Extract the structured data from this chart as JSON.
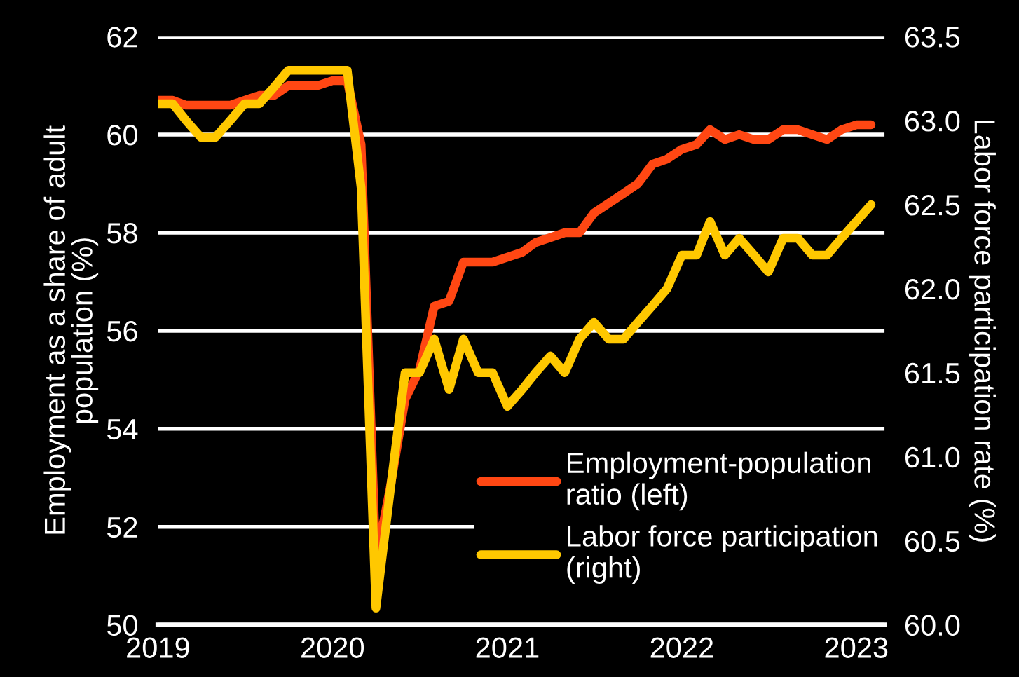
{
  "chart_data": {
    "type": "line",
    "ylabel": "Employment as a share of adult\npopulation (%)",
    "y2label": "Labor force participation rate (%)",
    "x": [
      "2019-01",
      "2019-02",
      "2019-03",
      "2019-04",
      "2019-05",
      "2019-06",
      "2019-07",
      "2019-08",
      "2019-09",
      "2019-10",
      "2019-11",
      "2019-12",
      "2020-01",
      "2020-02",
      "2020-03",
      "2020-04",
      "2020-05",
      "2020-06",
      "2020-07",
      "2020-08",
      "2020-09",
      "2020-10",
      "2020-11",
      "2020-12",
      "2021-01",
      "2021-02",
      "2021-03",
      "2021-04",
      "2021-05",
      "2021-06",
      "2021-07",
      "2021-08",
      "2021-09",
      "2021-10",
      "2021-11",
      "2021-12",
      "2022-01",
      "2022-02",
      "2022-03",
      "2022-04",
      "2022-05",
      "2022-06",
      "2022-07",
      "2022-08",
      "2022-09",
      "2022-10",
      "2022-11",
      "2022-12",
      "2023-01",
      "2023-02"
    ],
    "series": [
      {
        "name": "Employment-population\nratio (left)",
        "color": "#ff4713",
        "values": [
          60.7,
          60.7,
          60.6,
          60.6,
          60.6,
          60.6,
          60.7,
          60.8,
          60.8,
          61.0,
          61.0,
          61.0,
          61.1,
          61.1,
          59.8,
          51.3,
          52.8,
          54.6,
          55.2,
          56.5,
          56.6,
          57.4,
          57.4,
          57.4,
          57.5,
          57.6,
          57.8,
          57.9,
          58.0,
          58.0,
          58.4,
          58.6,
          58.8,
          59.0,
          59.4,
          59.5,
          59.7,
          59.8,
          60.1,
          59.9,
          60.0,
          59.9,
          59.9,
          60.1,
          60.1,
          60.0,
          59.9,
          60.1,
          60.2,
          60.2
        ]
      },
      {
        "name": "Labor force participation\n(right)",
        "color": "#ffc800",
        "axis": "y2",
        "values": [
          63.1,
          63.1,
          63.0,
          62.9,
          62.9,
          63.0,
          63.1,
          63.1,
          63.2,
          63.3,
          63.3,
          63.3,
          63.3,
          63.3,
          62.6,
          60.1,
          60.8,
          61.5,
          61.5,
          61.7,
          61.4,
          61.7,
          61.5,
          61.5,
          61.3,
          61.4,
          61.5,
          61.6,
          61.5,
          61.7,
          61.8,
          61.7,
          61.7,
          61.8,
          61.9,
          62.0,
          62.2,
          62.2,
          62.4,
          62.2,
          62.3,
          62.2,
          62.1,
          62.3,
          62.3,
          62.2,
          62.2,
          62.3,
          62.4,
          62.5
        ]
      }
    ],
    "xlim": [
      "2019-01",
      "2023-03"
    ],
    "xticks": [
      "2019",
      "2020",
      "2021",
      "2022",
      "2023"
    ],
    "ylim": [
      50,
      62
    ],
    "yticks": [
      50,
      52,
      54,
      56,
      58,
      60,
      62
    ],
    "y2lim": [
      60,
      63.5
    ],
    "y2ticks": [
      {
        "value": 60,
        "label": "60.0"
      },
      60.5,
      {
        "value": 61,
        "label": "61.0"
      },
      61.5,
      {
        "value": 62,
        "label": "62.0"
      },
      62.5,
      {
        "value": 63,
        "label": "63.0"
      },
      63.5
    ],
    "grid": "y",
    "legend": "bottom right",
    "line_style": "solid",
    "marker": "none"
  }
}
